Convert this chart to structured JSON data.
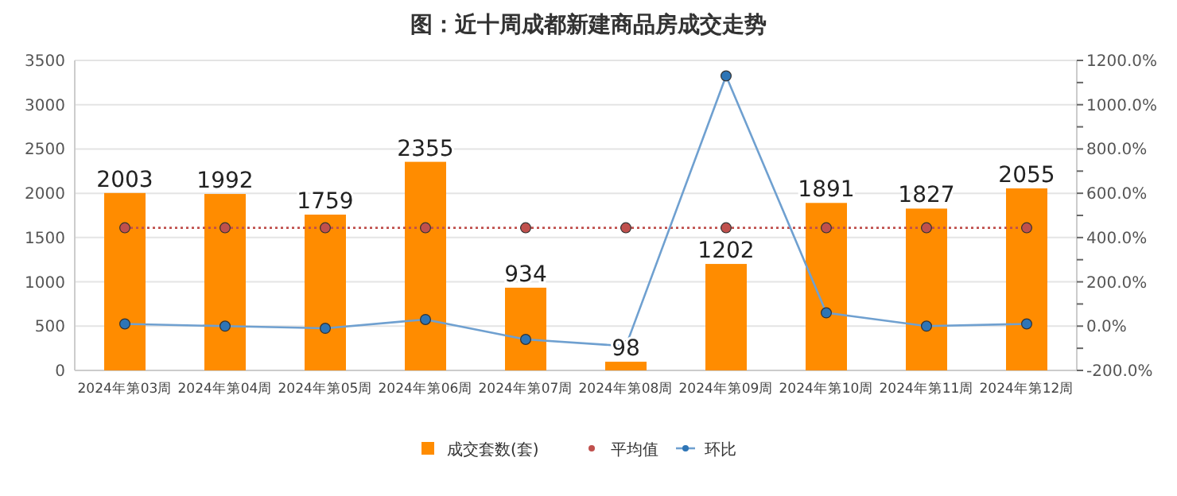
{
  "chart_data": {
    "type": "bar",
    "title": "图：近十周成都新建商品房成交走势",
    "categories": [
      "2024年第03周",
      "2024年第04周",
      "2024年第05周",
      "2024年第06周",
      "2024年第07周",
      "2024年第08周",
      "2024年第09周",
      "2024年第10周",
      "2024年第11周",
      "2024年第12周"
    ],
    "series": [
      {
        "name": "成交套数(套)",
        "color": "#ff8c00",
        "values": [
          2003,
          1992,
          1759,
          2355,
          934,
          98,
          1202,
          1891,
          1827,
          2055
        ],
        "value_labels": [
          "2003",
          "1992",
          "1759",
          "2355",
          "934",
          "98",
          "1202",
          "1891",
          "1827",
          "2055"
        ]
      },
      {
        "name": "平均值",
        "type": "line",
        "color": "#c0504d",
        "line_style": "dotted",
        "marker": "circle",
        "values": [
          1610,
          1610,
          1610,
          1610,
          1610,
          1610,
          1610,
          1610,
          1610,
          1610
        ]
      },
      {
        "name": "环比",
        "type": "line",
        "axis": "y2",
        "color": "#6fa0d0",
        "line_style": "solid",
        "marker": "circle",
        "values": [
          10,
          0,
          -10,
          30,
          -60,
          -90,
          1130,
          60,
          0,
          10
        ]
      }
    ],
    "ylim": [
      0,
      3500
    ],
    "yticks": [
      0,
      500,
      1000,
      1500,
      2000,
      2500,
      3000,
      3500
    ],
    "y2lim": [
      -200,
      1200
    ],
    "y2ticks": [
      {
        "value": -200,
        "label": "-200.0%"
      },
      {
        "value": -100,
        "label": null
      },
      {
        "value": 0,
        "label": "0.0%"
      },
      {
        "value": 100,
        "label": null
      },
      {
        "value": 200,
        "label": "200.0%"
      },
      {
        "value": 300,
        "label": null
      },
      {
        "value": 400,
        "label": "400.0%"
      },
      {
        "value": 500,
        "label": null
      },
      {
        "value": 600,
        "label": "600.0%"
      },
      {
        "value": 700,
        "label": null
      },
      {
        "value": 800,
        "label": "800.0%"
      },
      {
        "value": 900,
        "label": null
      },
      {
        "value": 1000,
        "label": "1000.0%"
      },
      {
        "value": 1100,
        "label": null
      },
      {
        "value": 1200,
        "label": "1200.0%"
      }
    ],
    "grid": "y",
    "legend": "bottom"
  }
}
